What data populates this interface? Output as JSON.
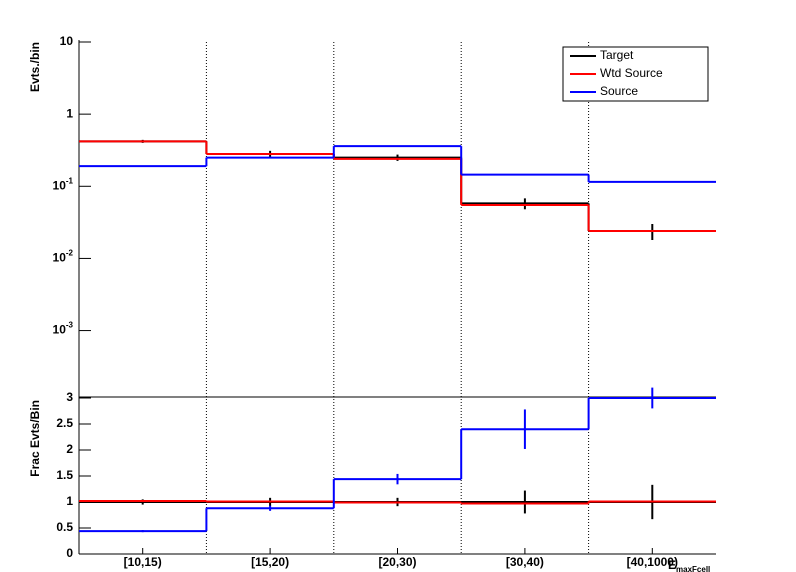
{
  "chart_data": [
    {
      "type": "step",
      "log_y": true,
      "y_label": "Evts./bin",
      "ylim": [
        0.00012,
        10
      ],
      "yticks": [
        {
          "value": 0.001,
          "label": "10^-3"
        },
        {
          "value": 0.01,
          "label": "10^-2"
        },
        {
          "value": 0.1,
          "label": "10^-1"
        },
        1,
        10
      ],
      "legend": "top-right",
      "series": [
        {
          "name": "Target",
          "color": "#000000",
          "values": [
            0.42,
            0.28,
            0.25,
            0.058,
            0.024
          ],
          "errors": [
            0.02,
            0.03,
            0.025,
            0.01,
            0.006
          ]
        },
        {
          "name": "Wtd Source",
          "color": "#ff0000",
          "values": [
            0.42,
            0.28,
            0.24,
            0.055,
            0.024
          ]
        },
        {
          "name": "Source",
          "color": "#0000ff",
          "values": [
            0.19,
            0.25,
            0.36,
            0.145,
            0.115
          ]
        }
      ]
    },
    {
      "type": "step",
      "log_y": false,
      "y_label": "Frac Evts/Bin",
      "x_label": "E",
      "x_label_sub": "maxFcell",
      "categories": [
        "[10,15)",
        "[15,20)",
        "[20,30)",
        "[30,40)",
        "[40,1000)"
      ],
      "ylim": [
        0,
        3
      ],
      "yticks": [
        0,
        0.5,
        1,
        1.5,
        2,
        2.5,
        3
      ],
      "series": [
        {
          "color": "#000000",
          "values": [
            1.0,
            1.0,
            1.0,
            1.0,
            1.0
          ],
          "errors": [
            0.05,
            0.08,
            0.08,
            0.22,
            0.33
          ]
        },
        {
          "color": "#ff0000",
          "values": [
            1.02,
            1.01,
            0.99,
            0.97,
            1.01
          ]
        },
        {
          "color": "#0000ff",
          "values": [
            0.44,
            0.88,
            1.44,
            2.4,
            3.0
          ],
          "errors": [
            0.02,
            0.05,
            0.1,
            0.38,
            0.2
          ]
        }
      ]
    }
  ]
}
